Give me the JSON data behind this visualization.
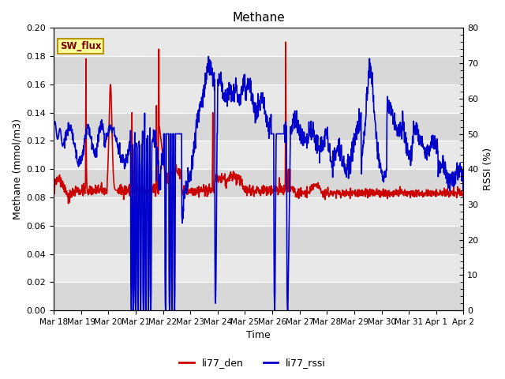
{
  "title": "Methane",
  "xlabel": "Time",
  "ylabel_left": "Methane (mmol/m3)",
  "ylabel_right": "RSSI (%)",
  "ylim_left": [
    0.0,
    0.2
  ],
  "ylim_right": [
    0,
    80
  ],
  "yticks_left": [
    0.0,
    0.02,
    0.04,
    0.06,
    0.08,
    0.1,
    0.12,
    0.14,
    0.16,
    0.18,
    0.2
  ],
  "yticks_right": [
    0,
    10,
    20,
    30,
    40,
    50,
    60,
    70,
    80
  ],
  "xtick_labels": [
    "Mar 18",
    "Mar 19",
    "Mar 20",
    "Mar 21",
    "Mar 22",
    "Mar 23",
    "Mar 24",
    "Mar 25",
    "Mar 26",
    "Mar 27",
    "Mar 28",
    "Mar 29",
    "Mar 30",
    "Mar 31",
    "Apr 1",
    "Apr 2"
  ],
  "color_red": "#cc0000",
  "color_blue": "#0000cc",
  "legend_label_red": "li77_den",
  "legend_label_blue": "li77_rssi",
  "annotation_text": "SW_flux",
  "annotation_bg": "#ffff99",
  "annotation_border": "#b8960c",
  "band_colors": [
    "#d8d8d8",
    "#e8e8e8"
  ],
  "line_width": 1.2
}
